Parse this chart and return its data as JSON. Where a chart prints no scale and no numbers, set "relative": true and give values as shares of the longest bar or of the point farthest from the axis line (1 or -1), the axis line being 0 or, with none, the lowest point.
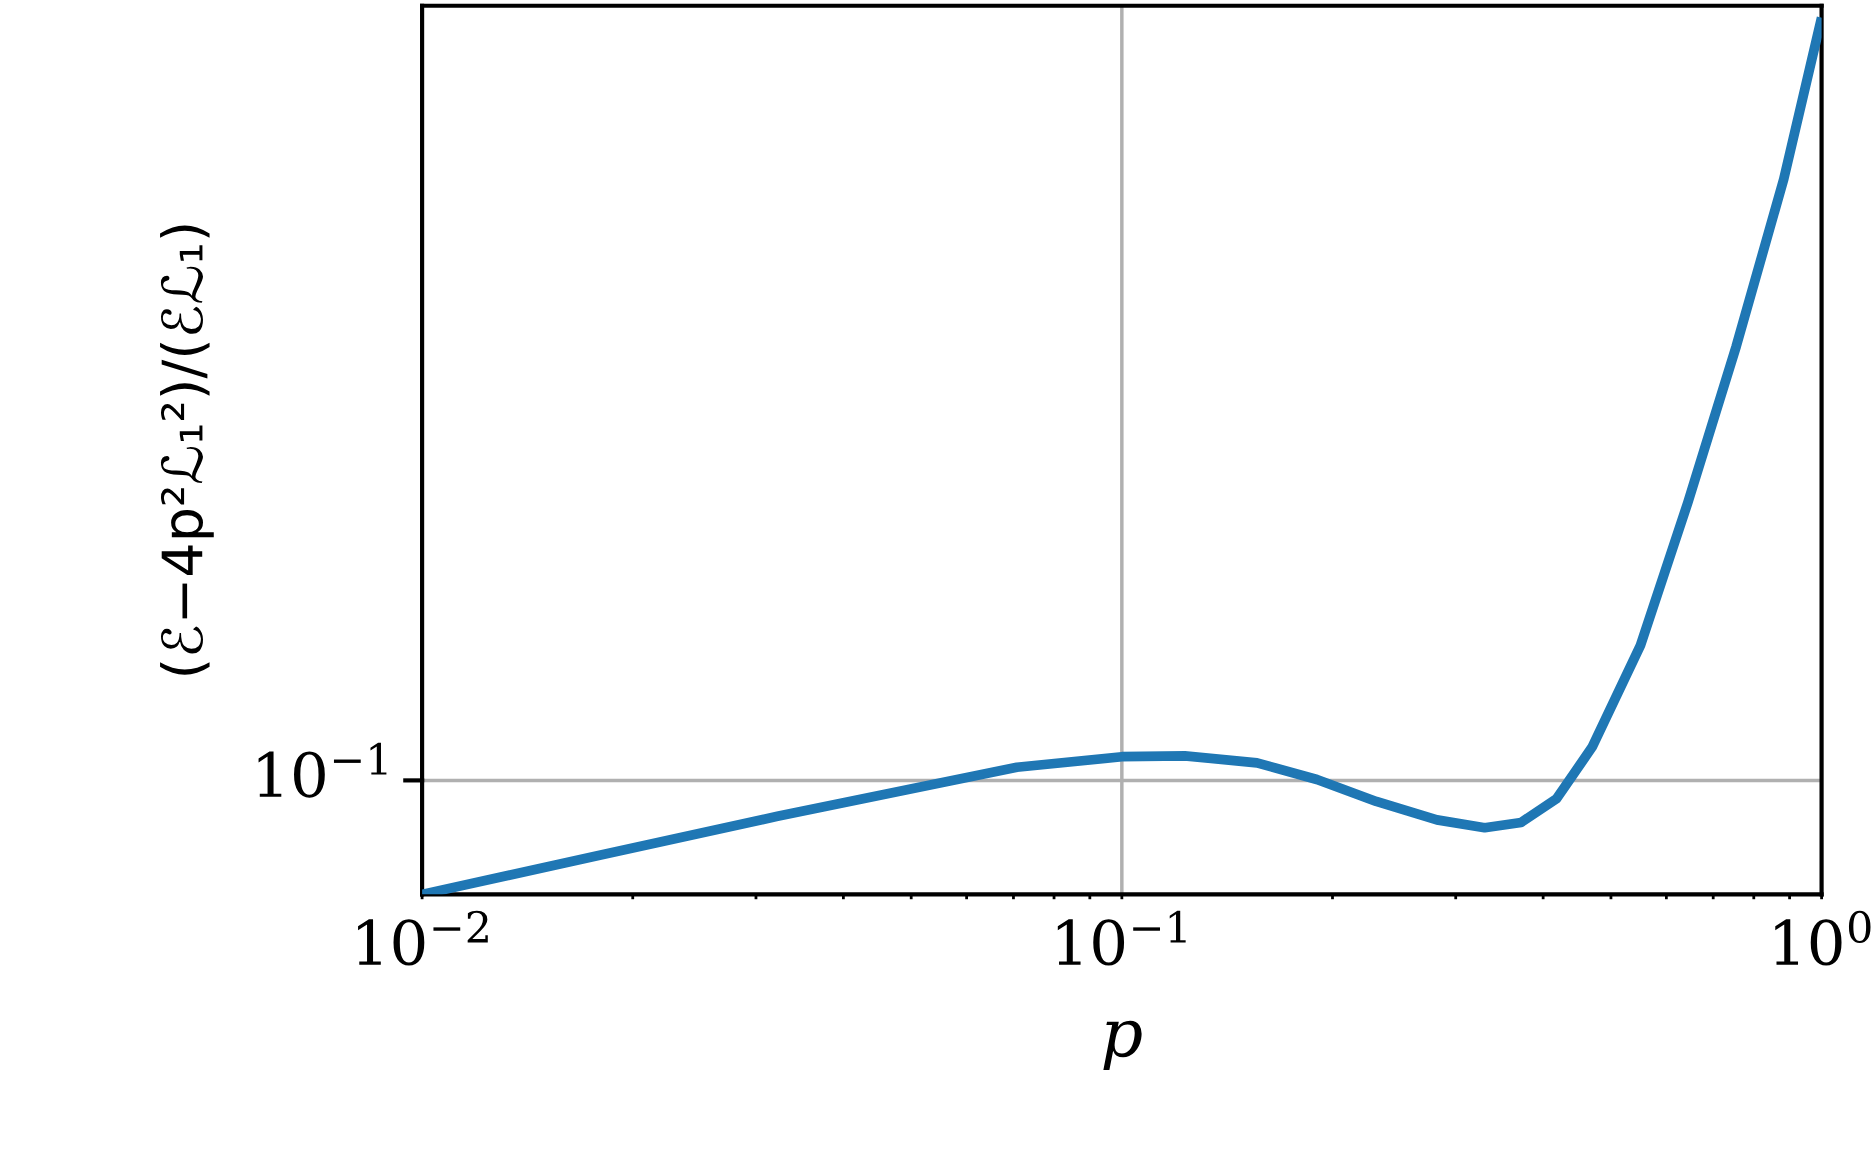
{
  "chart_data": {
    "type": "line",
    "xlabel": "p",
    "ylabel": "(ℰ−4p²ℒ₁²)/(ℰℒ₁)",
    "log": "x",
    "grid": "x",
    "legend": false,
    "marker": "none",
    "line_style": "solid",
    "relative": true,
    "tick_labels": "x",
    "xlim": [
      0.01,
      1
    ],
    "xticks": [
      {
        "value": 0.01,
        "label": "10$^{−2}$"
      },
      {
        "value": 0.02,
        "label": null
      },
      {
        "value": 0.03,
        "label": null
      },
      {
        "value": 0.04,
        "label": null
      },
      {
        "value": 0.05,
        "label": null
      },
      {
        "value": 0.06,
        "label": null
      },
      {
        "value": 0.07,
        "label": null
      },
      {
        "value": 0.08,
        "label": null
      },
      {
        "value": 0.09,
        "label": null
      },
      {
        "value": 0.1,
        "label": "10$^{−1}$"
      },
      {
        "value": 0.2,
        "label": null
      },
      {
        "value": 0.3,
        "label": null
      },
      {
        "value": 0.4,
        "label": null
      },
      {
        "value": 0.5,
        "label": null
      },
      {
        "value": 0.6,
        "label": null
      },
      {
        "value": 0.7,
        "label": null
      },
      {
        "value": 0.8,
        "label": null
      },
      {
        "value": 0.9,
        "label": null
      },
      {
        "value": 1,
        "label": "10$^{0}$"
      }
    ],
    "ref_lines": [
      {
        "axis": "y",
        "value": 0.13,
        "label": "10$^{−1}$",
        "color": "#b0b0b0"
      }
    ],
    "series": [
      {
        "color": "#1f77b4",
        "x": [
          0.01,
          0.0178,
          0.0322,
          0.0497,
          0.0708,
          0.1,
          0.123,
          0.156,
          0.19,
          0.231,
          0.282,
          0.33,
          0.372,
          0.418,
          0.47,
          0.551,
          0.644,
          0.755,
          0.883,
          1.0
        ],
        "values": [
          0,
          0.044,
          0.089,
          0.12,
          0.145,
          0.157,
          0.158,
          0.15,
          0.131,
          0.106,
          0.085,
          0.076,
          0.082,
          0.109,
          0.168,
          0.284,
          0.447,
          0.625,
          0.816,
          1
        ]
      }
    ]
  }
}
